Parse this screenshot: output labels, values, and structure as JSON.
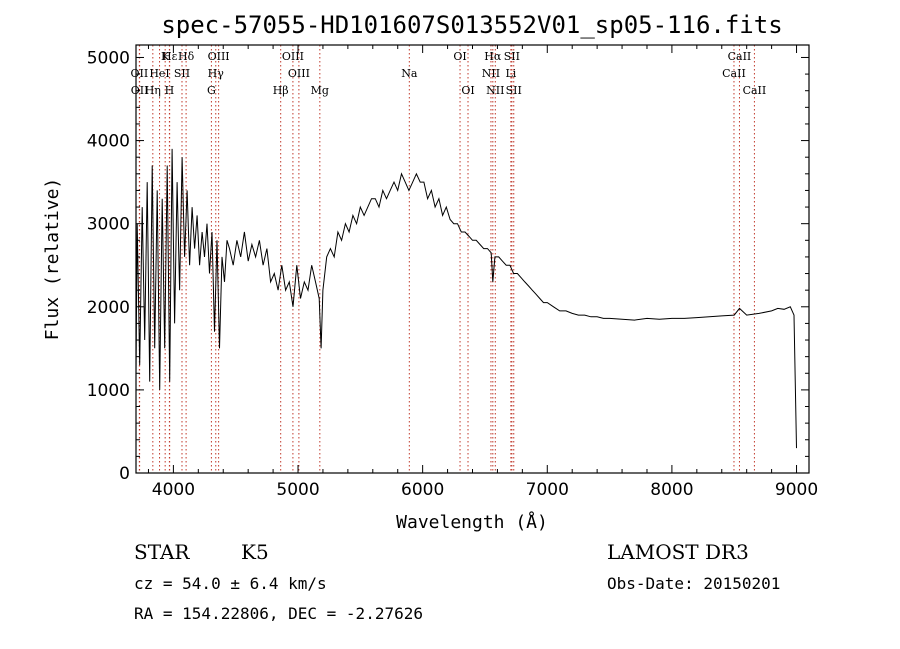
{
  "chart_data": {
    "type": "line",
    "title": "spec-57055-HD101607S013552V01_sp05-116.fits",
    "xlabel": "Wavelength (Å)",
    "ylabel": "Flux (relative)",
    "xlim": [
      3700,
      9100
    ],
    "ylim": [
      0,
      5150
    ],
    "xticks": [
      4000,
      5000,
      6000,
      7000,
      8000,
      9000
    ],
    "yticks": [
      0,
      1000,
      2000,
      3000,
      4000,
      5000
    ],
    "series": [
      {
        "name": "flux",
        "x": [
          3700,
          3710,
          3730,
          3750,
          3770,
          3790,
          3810,
          3830,
          3850,
          3870,
          3890,
          3910,
          3930,
          3950,
          3970,
          3990,
          4010,
          4030,
          4050,
          4070,
          4090,
          4110,
          4130,
          4150,
          4170,
          4190,
          4210,
          4230,
          4250,
          4270,
          4290,
          4310,
          4330,
          4350,
          4370,
          4390,
          4410,
          4430,
          4450,
          4480,
          4510,
          4540,
          4570,
          4600,
          4630,
          4660,
          4690,
          4720,
          4750,
          4780,
          4810,
          4840,
          4870,
          4900,
          4930,
          4960,
          4990,
          5020,
          5050,
          5080,
          5110,
          5140,
          5170,
          5185,
          5200,
          5230,
          5260,
          5290,
          5320,
          5350,
          5380,
          5410,
          5440,
          5470,
          5500,
          5530,
          5560,
          5590,
          5620,
          5650,
          5680,
          5710,
          5740,
          5770,
          5800,
          5830,
          5860,
          5890,
          5920,
          5950,
          5980,
          6010,
          6040,
          6070,
          6100,
          6130,
          6160,
          6190,
          6220,
          6250,
          6280,
          6310,
          6340,
          6370,
          6400,
          6430,
          6460,
          6490,
          6520,
          6550,
          6563,
          6580,
          6610,
          6640,
          6670,
          6700,
          6730,
          6760,
          6790,
          6820,
          6850,
          6880,
          6910,
          6940,
          6970,
          7000,
          7050,
          7100,
          7150,
          7200,
          7250,
          7300,
          7350,
          7400,
          7450,
          7500,
          7600,
          7700,
          7800,
          7900,
          8000,
          8100,
          8200,
          8300,
          8400,
          8500,
          8542,
          8600,
          8700,
          8800,
          8850,
          8900,
          8950,
          8980,
          9000
        ],
        "values": [
          1200,
          3000,
          1300,
          3200,
          1600,
          3500,
          1100,
          3700,
          1500,
          3400,
          1000,
          3300,
          1500,
          3700,
          1100,
          3900,
          1800,
          3500,
          2200,
          3800,
          2600,
          3400,
          2500,
          3200,
          2700,
          3100,
          2500,
          2900,
          2600,
          3000,
          2400,
          2900,
          1700,
          2800,
          1500,
          2600,
          2300,
          2800,
          2700,
          2500,
          2800,
          2600,
          2900,
          2550,
          2750,
          2600,
          2800,
          2500,
          2700,
          2300,
          2400,
          2200,
          2500,
          2200,
          2300,
          2000,
          2500,
          2100,
          2300,
          2200,
          2500,
          2300,
          2100,
          1500,
          2200,
          2600,
          2700,
          2600,
          2900,
          2800,
          3000,
          2900,
          3100,
          3000,
          3200,
          3100,
          3200,
          3300,
          3300,
          3200,
          3400,
          3300,
          3400,
          3500,
          3400,
          3600,
          3500,
          3400,
          3500,
          3600,
          3500,
          3500,
          3300,
          3400,
          3200,
          3300,
          3100,
          3200,
          3050,
          3000,
          3000,
          2900,
          2900,
          2850,
          2800,
          2800,
          2750,
          2700,
          2700,
          2650,
          2300,
          2600,
          2600,
          2550,
          2500,
          2500,
          2400,
          2400,
          2350,
          2300,
          2250,
          2200,
          2150,
          2100,
          2050,
          2050,
          2000,
          1950,
          1950,
          1920,
          1900,
          1900,
          1880,
          1880,
          1860,
          1860,
          1850,
          1840,
          1860,
          1850,
          1860,
          1860,
          1870,
          1880,
          1890,
          1900,
          1980,
          1900,
          1920,
          1950,
          1980,
          1970,
          2000,
          1900,
          300
        ]
      }
    ],
    "spectral_lines": [
      {
        "label": "Hε",
        "x": 3970,
        "row": 0
      },
      {
        "label": "K",
        "x": 3934,
        "row": 0
      },
      {
        "label": "Hδ",
        "x": 4102,
        "row": 0
      },
      {
        "label": "OII",
        "x": 3727,
        "row": 1
      },
      {
        "label": "HeI",
        "x": 3889,
        "row": 1
      },
      {
        "label": "SII",
        "x": 4069,
        "row": 1
      },
      {
        "label": "OII",
        "x": 3729,
        "row": 2
      },
      {
        "label": "Hη",
        "x": 3835,
        "row": 2
      },
      {
        "label": "H",
        "x": 3968,
        "row": 2
      },
      {
        "label": "OIII",
        "x": 4363,
        "row": 0
      },
      {
        "label": "Hγ",
        "x": 4340,
        "row": 1
      },
      {
        "label": "G",
        "x": 4305,
        "row": 2
      },
      {
        "label": "OIII",
        "x": 4959,
        "row": 0
      },
      {
        "label": "OIII",
        "x": 5007,
        "row": 1
      },
      {
        "label": "Hβ",
        "x": 4861,
        "row": 2
      },
      {
        "label": "Mg",
        "x": 5175,
        "row": 2
      },
      {
        "label": "Na",
        "x": 5893,
        "row": 1
      },
      {
        "label": "OI",
        "x": 6300,
        "row": 0
      },
      {
        "label": "OI",
        "x": 6364,
        "row": 2
      },
      {
        "label": "Hα",
        "x": 6563,
        "row": 0
      },
      {
        "label": "SII",
        "x": 6716,
        "row": 0
      },
      {
        "label": "NII",
        "x": 6548,
        "row": 1
      },
      {
        "label": "Li",
        "x": 6708,
        "row": 1
      },
      {
        "label": "NII",
        "x": 6583,
        "row": 2
      },
      {
        "label": "SII",
        "x": 6731,
        "row": 2
      },
      {
        "label": "CaII",
        "x": 8542,
        "row": 0
      },
      {
        "label": "CaII",
        "x": 8498,
        "row": 1
      },
      {
        "label": "CaII",
        "x": 8662,
        "row": 2
      }
    ]
  },
  "info": {
    "object_class": "STAR",
    "subclass": "K5",
    "survey": "LAMOST DR3",
    "cz": "cz = 54.0 ± 6.4 km/s",
    "obs_date": "Obs-Date: 20150201",
    "coords": "RA = 154.22806, DEC =  -2.27626"
  }
}
